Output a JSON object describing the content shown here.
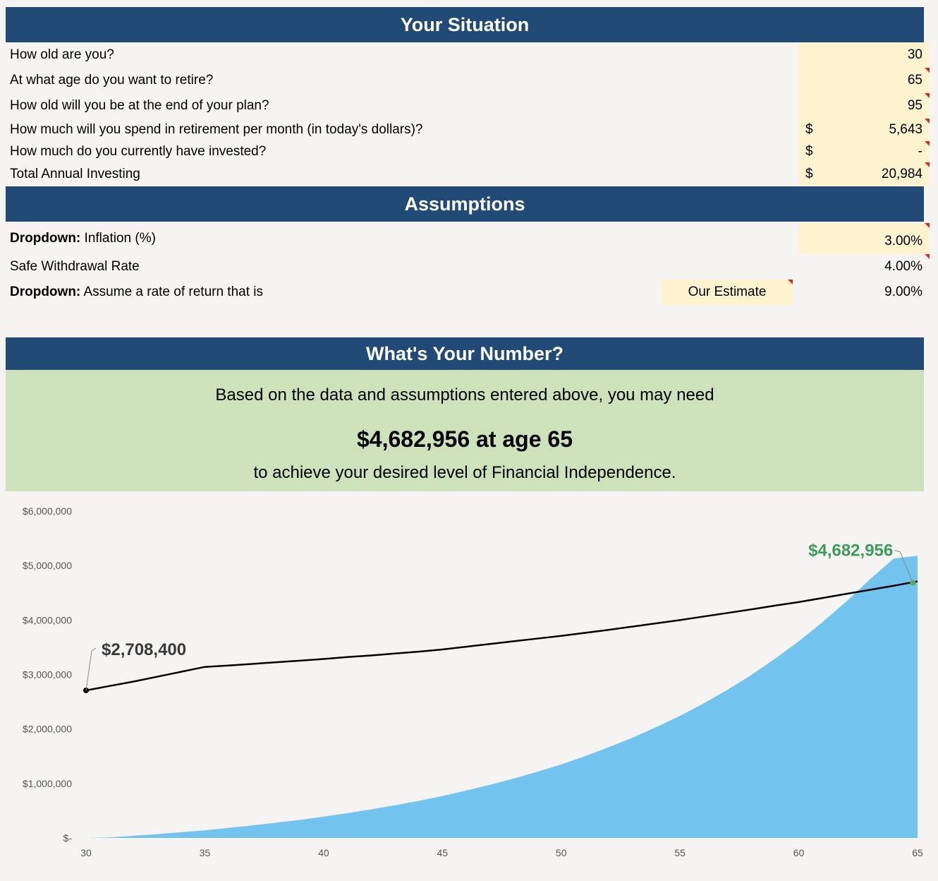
{
  "situation": {
    "title": "Your Situation",
    "rows": [
      {
        "label": "How old are you?",
        "currency": "",
        "value": "30"
      },
      {
        "label": "At what age do you want to retire?",
        "currency": "",
        "value": "65"
      },
      {
        "label": "How old will you be at the end of your plan?",
        "currency": "",
        "value": "95"
      },
      {
        "label": "How much will you spend in retirement per month (in today's dollars)?",
        "currency": "$",
        "value": "5,643"
      },
      {
        "label": "How much do you currently have invested?",
        "currency": "$",
        "value": "-"
      },
      {
        "label": "Total Annual Investing",
        "currency": "$",
        "value": "20,984"
      }
    ]
  },
  "assumptions": {
    "title": "Assumptions",
    "inflation": {
      "prefix": "Dropdown:",
      "label": " Inflation (%)",
      "value": "3.00%"
    },
    "withdrawal": {
      "label": "Safe Withdrawal Rate",
      "value": "4.00%"
    },
    "return": {
      "prefix": "Dropdown:",
      "label": " Assume a rate of return that is",
      "option": "Our Estimate",
      "value": "9.00%"
    }
  },
  "number": {
    "title": "What's Your Number?",
    "line1": "Based on the data and assumptions entered above, you may need",
    "line2": "$4,682,956 at age 65",
    "line3": "to achieve your desired level of Financial Independence."
  },
  "colors": {
    "header": "#224a76",
    "input": "#fdf3cf",
    "result": "#cde1bb",
    "area": "#72c4ef",
    "target_label": "#3d9a5a"
  },
  "chart_data": {
    "type": "area",
    "x": [
      30,
      31,
      32,
      33,
      34,
      35,
      36,
      37,
      38,
      39,
      40,
      41,
      42,
      43,
      44,
      45,
      46,
      47,
      48,
      49,
      50,
      51,
      52,
      53,
      54,
      55,
      56,
      57,
      58,
      59,
      60,
      61,
      62,
      63,
      64,
      65
    ],
    "series": [
      {
        "type": "line",
        "values": [
          2708400,
          2790000,
          2870000,
          2960000,
          3050000,
          3140000,
          3165000,
          3195000,
          3225000,
          3255000,
          3285000,
          3320000,
          3350000,
          3385000,
          3420000,
          3460000,
          3510000,
          3560000,
          3610000,
          3660000,
          3710000,
          3765000,
          3820000,
          3880000,
          3940000,
          4000000,
          4065000,
          4130000,
          4195000,
          4265000,
          4330000,
          4405000,
          4480000,
          4555000,
          4630000,
          4710000
        ]
      },
      {
        "type": "area",
        "values": [
          0,
          10000,
          40000,
          70000,
          105000,
          140000,
          185000,
          230000,
          280000,
          330000,
          390000,
          455000,
          525000,
          600000,
          680000,
          770000,
          870000,
          975000,
          1090000,
          1215000,
          1350000,
          1500000,
          1665000,
          1840000,
          2035000,
          2240000,
          2470000,
          2720000,
          2990000,
          3290000,
          3610000,
          3960000,
          4340000,
          4750000,
          5130000,
          5180000
        ]
      }
    ],
    "annotations": [
      {
        "x": 30,
        "y": 2708400,
        "label": "$2,708,400"
      },
      {
        "x": 64.8,
        "y": 4682956,
        "label": "$4,682,956"
      }
    ],
    "ylim": [
      0,
      6000000
    ],
    "xlim": [
      30,
      65
    ],
    "yticks": [
      0,
      1000000,
      2000000,
      3000000,
      4000000,
      5000000,
      6000000
    ],
    "ytick_labels": [
      "$-",
      "$1,000,000",
      "$2,000,000",
      "$3,000,000",
      "$4,000,000",
      "$5,000,000",
      "$6,000,000"
    ],
    "xticks": [
      30,
      35,
      40,
      45,
      50,
      55,
      60,
      65
    ],
    "grid": false,
    "legend": "none"
  }
}
